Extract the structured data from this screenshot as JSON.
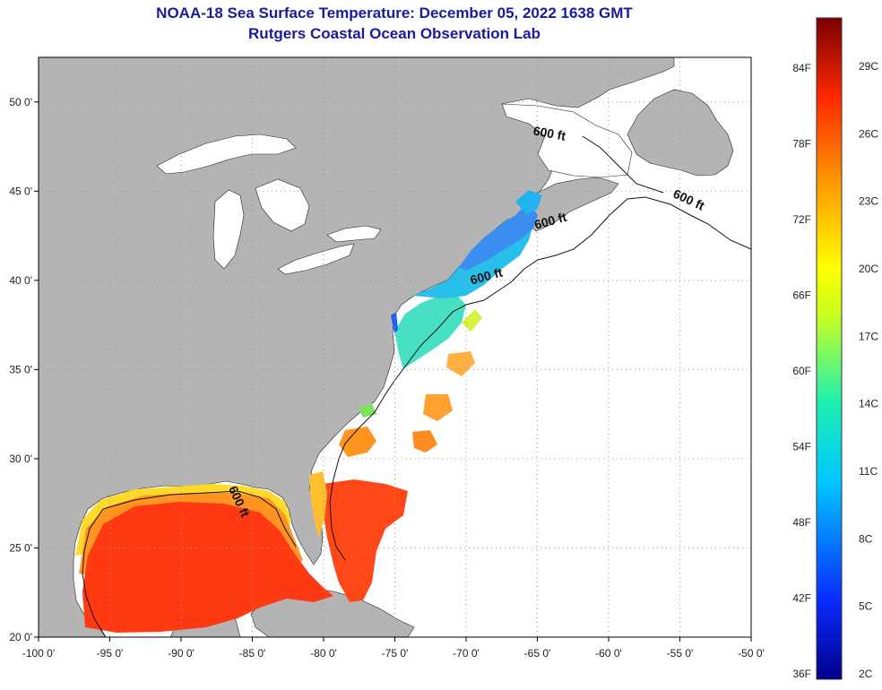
{
  "header": {
    "title_line1": "NOAA-18 Sea Surface Temperature:  December 05, 2022 1638 GMT",
    "title_line2": "Rutgers Coastal Ocean Observation Lab"
  },
  "map": {
    "lon_range": [
      -100,
      -50
    ],
    "lat_range": [
      20,
      52.5
    ],
    "lon_ticks": [
      {
        "value": -100,
        "label": "-100 0'"
      },
      {
        "value": -95,
        "label": "-95 0'"
      },
      {
        "value": -90,
        "label": "-90 0'"
      },
      {
        "value": -85,
        "label": "-85 0'"
      },
      {
        "value": -80,
        "label": "-80 0'"
      },
      {
        "value": -75,
        "label": "-75 0'"
      },
      {
        "value": -70,
        "label": "-70 0'"
      },
      {
        "value": -65,
        "label": "-65 0'"
      },
      {
        "value": -60,
        "label": "-60 0'"
      },
      {
        "value": -55,
        "label": "-55 0'"
      },
      {
        "value": -50,
        "label": "-50 0'"
      }
    ],
    "lat_ticks": [
      {
        "value": 50,
        "label": "50 0'"
      },
      {
        "value": 45,
        "label": "45 0'"
      },
      {
        "value": 40,
        "label": "40 0'"
      },
      {
        "value": 35,
        "label": "35 0'"
      },
      {
        "value": 30,
        "label": "30 0'"
      },
      {
        "value": 25,
        "label": "25 0'"
      },
      {
        "value": 20,
        "label": "20 0'"
      }
    ],
    "contour_labels": [
      {
        "text": "600 ft",
        "lon": -64.2,
        "lat": 48.0,
        "angle": 10
      },
      {
        "text": "600 ft",
        "lon": -54.5,
        "lat": 44.3,
        "angle": 25
      },
      {
        "text": "600 ft",
        "lon": -64.0,
        "lat": 43.1,
        "angle": -15
      },
      {
        "text": "600 ft",
        "lon": -68.5,
        "lat": 40.0,
        "angle": -15
      },
      {
        "text": "600 ft",
        "lon": -86.2,
        "lat": 27.5,
        "angle": 65
      }
    ],
    "colors": {
      "land": "#b4b4b4",
      "ocean": "#ffffff",
      "grid": "#9a9a9a",
      "gulf_sst": "#ff3a12",
      "gulf_shelf": "#ff8a20",
      "gulf_coast": "#ffe020",
      "northeast_sst": "#39a5f0",
      "northeast_shelf": "#21c7e8",
      "northeast_cold": "#1f6cf4",
      "midatlantic": "#46e6c0",
      "carolina": "#ff9020",
      "florida_coast": "#ffd040"
    }
  },
  "colorbar": {
    "left_labels": [
      "84F",
      "78F",
      "72F",
      "66F",
      "60F",
      "54F",
      "48F",
      "42F",
      "36F"
    ],
    "right_labels": [
      "29C",
      "26C",
      "23C",
      "20C",
      "17C",
      "14C",
      "11C",
      "8C",
      "5C",
      "2C"
    ]
  }
}
